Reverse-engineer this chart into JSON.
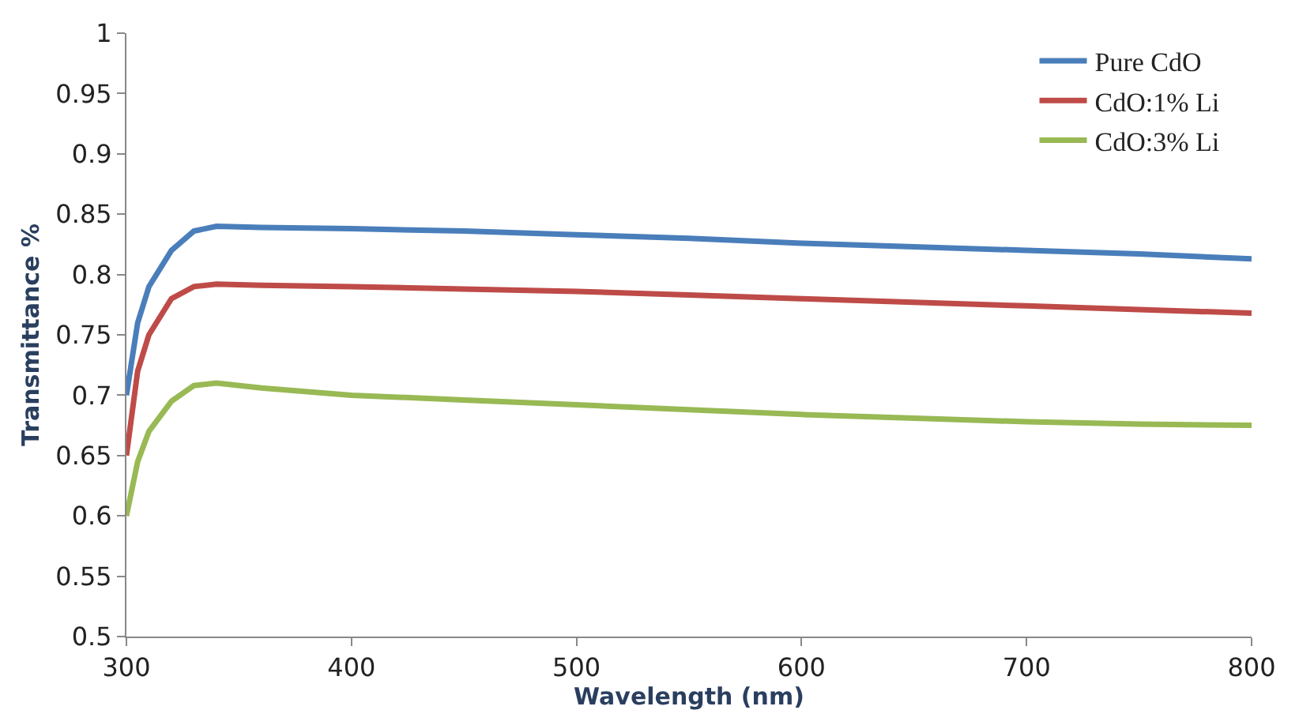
{
  "chart_data": {
    "type": "line",
    "xlabel": "Wavelength (nm)",
    "ylabel": "Transmittance %",
    "xlim": [
      300,
      800
    ],
    "xticks": [
      300,
      400,
      500,
      600,
      700,
      800
    ],
    "ylim": [
      0.5,
      1
    ],
    "yticks": [
      0.5,
      0.55,
      0.6,
      0.65,
      0.7,
      0.75,
      0.8,
      0.85,
      0.9,
      0.95,
      1
    ],
    "grid": false,
    "legend": "top right",
    "marker": "none",
    "line_style": "solid",
    "x": [
      300,
      305,
      310,
      320,
      330,
      340,
      360,
      400,
      450,
      500,
      550,
      600,
      650,
      700,
      750,
      800
    ],
    "series": [
      {
        "name": "Pure CdO",
        "color": "#4a7ebb",
        "values": [
          0.7,
          0.76,
          0.79,
          0.82,
          0.836,
          0.84,
          0.839,
          0.838,
          0.836,
          0.833,
          0.83,
          0.826,
          0.823,
          0.82,
          0.817,
          0.813
        ]
      },
      {
        "name": "CdO:1% Li",
        "color": "#be4b48",
        "values": [
          0.65,
          0.72,
          0.75,
          0.78,
          0.79,
          0.792,
          0.791,
          0.79,
          0.788,
          0.786,
          0.783,
          0.78,
          0.777,
          0.774,
          0.771,
          0.768
        ]
      },
      {
        "name": "CdO:3% Li",
        "color": "#98b954",
        "values": [
          0.6,
          0.645,
          0.67,
          0.695,
          0.708,
          0.71,
          0.706,
          0.7,
          0.696,
          0.692,
          0.688,
          0.684,
          0.681,
          0.678,
          0.676,
          0.675
        ]
      }
    ]
  }
}
